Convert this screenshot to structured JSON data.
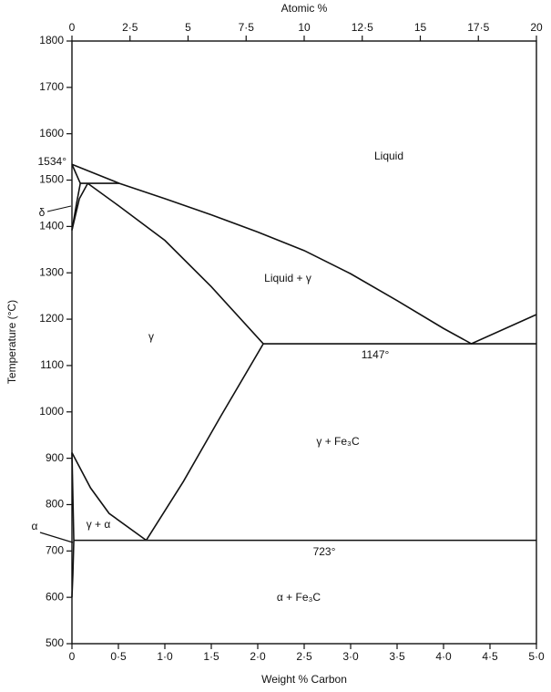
{
  "chart_data": {
    "type": "line",
    "x_label": "Weight % Carbon",
    "x2_label": "Atomic %",
    "y_label": "Temperature (°C)",
    "xlim": [
      0,
      5.0
    ],
    "x2lim": [
      0,
      20
    ],
    "ylim": [
      500,
      1800
    ],
    "xticks": [
      0,
      {
        "value": 0.5,
        "label": "0·5"
      },
      {
        "value": 1.0,
        "label": "1·0"
      },
      {
        "value": 1.5,
        "label": "1·5"
      },
      {
        "value": 2.0,
        "label": "2·0"
      },
      {
        "value": 2.5,
        "label": "2·5"
      },
      {
        "value": 3.0,
        "label": "3·0"
      },
      {
        "value": 3.5,
        "label": "3·5"
      },
      {
        "value": 4.0,
        "label": "4·0"
      },
      {
        "value": 4.5,
        "label": "4·5"
      },
      {
        "value": 5.0,
        "label": "5·0"
      }
    ],
    "x2ticks": [
      0,
      {
        "value": 2.5,
        "label": "2·5"
      },
      5,
      {
        "value": 7.5,
        "label": "7·5"
      },
      10,
      {
        "value": 12.5,
        "label": "12·5"
      },
      15,
      {
        "value": 17.5,
        "label": "17·5"
      },
      20
    ],
    "yticks": [
      500,
      600,
      700,
      800,
      900,
      1000,
      1100,
      1200,
      1300,
      1400,
      1500,
      1600,
      1700,
      1800
    ],
    "color": "#111111",
    "lines": [
      {
        "x": [
          0,
          0.51,
          1.0,
          1.5,
          2.0,
          2.5,
          3.0,
          3.5,
          4.0,
          4.3,
          5.0
        ],
        "y": [
          1534,
          1493,
          1460,
          1425,
          1388,
          1348,
          1298,
          1240,
          1180,
          1147,
          1210
        ]
      },
      {
        "x": [
          0,
          0.09
        ],
        "y": [
          1534,
          1493
        ]
      },
      {
        "x": [
          0.09,
          0.51
        ],
        "y": [
          1493,
          1493
        ]
      },
      {
        "x": [
          0,
          0.05,
          0.09
        ],
        "y": [
          1392,
          1450,
          1493
        ]
      },
      {
        "x": [
          0,
          0.08,
          0.17
        ],
        "y": [
          1392,
          1460,
          1493
        ]
      },
      {
        "x": [
          0.17,
          0.5,
          1.0,
          1.5,
          2.06
        ],
        "y": [
          1493,
          1445,
          1370,
          1270,
          1147
        ]
      },
      {
        "x": [
          2.06,
          5.0
        ],
        "y": [
          1147,
          1147
        ]
      },
      {
        "x": [
          0.8,
          1.2,
          1.6,
          2.06
        ],
        "y": [
          723,
          850,
          990,
          1147
        ]
      },
      {
        "x": [
          0,
          0.2,
          0.4,
          0.8
        ],
        "y": [
          912,
          836,
          781,
          723
        ]
      },
      {
        "x": [
          0.02,
          5.0
        ],
        "y": [
          723,
          723
        ]
      },
      {
        "x": [
          0,
          0.02
        ],
        "y": [
          912,
          723
        ]
      },
      {
        "x": [
          0.02,
          0.01,
          0
        ],
        "y": [
          723,
          650,
          600
        ]
      }
    ],
    "annotations": [
      "Liquid",
      "Liquid + γ",
      "γ",
      "1147°",
      "γ + Fe₃C",
      "γ + α",
      "α",
      "δ",
      "723°",
      "α + Fe₃C",
      "1534°"
    ]
  }
}
